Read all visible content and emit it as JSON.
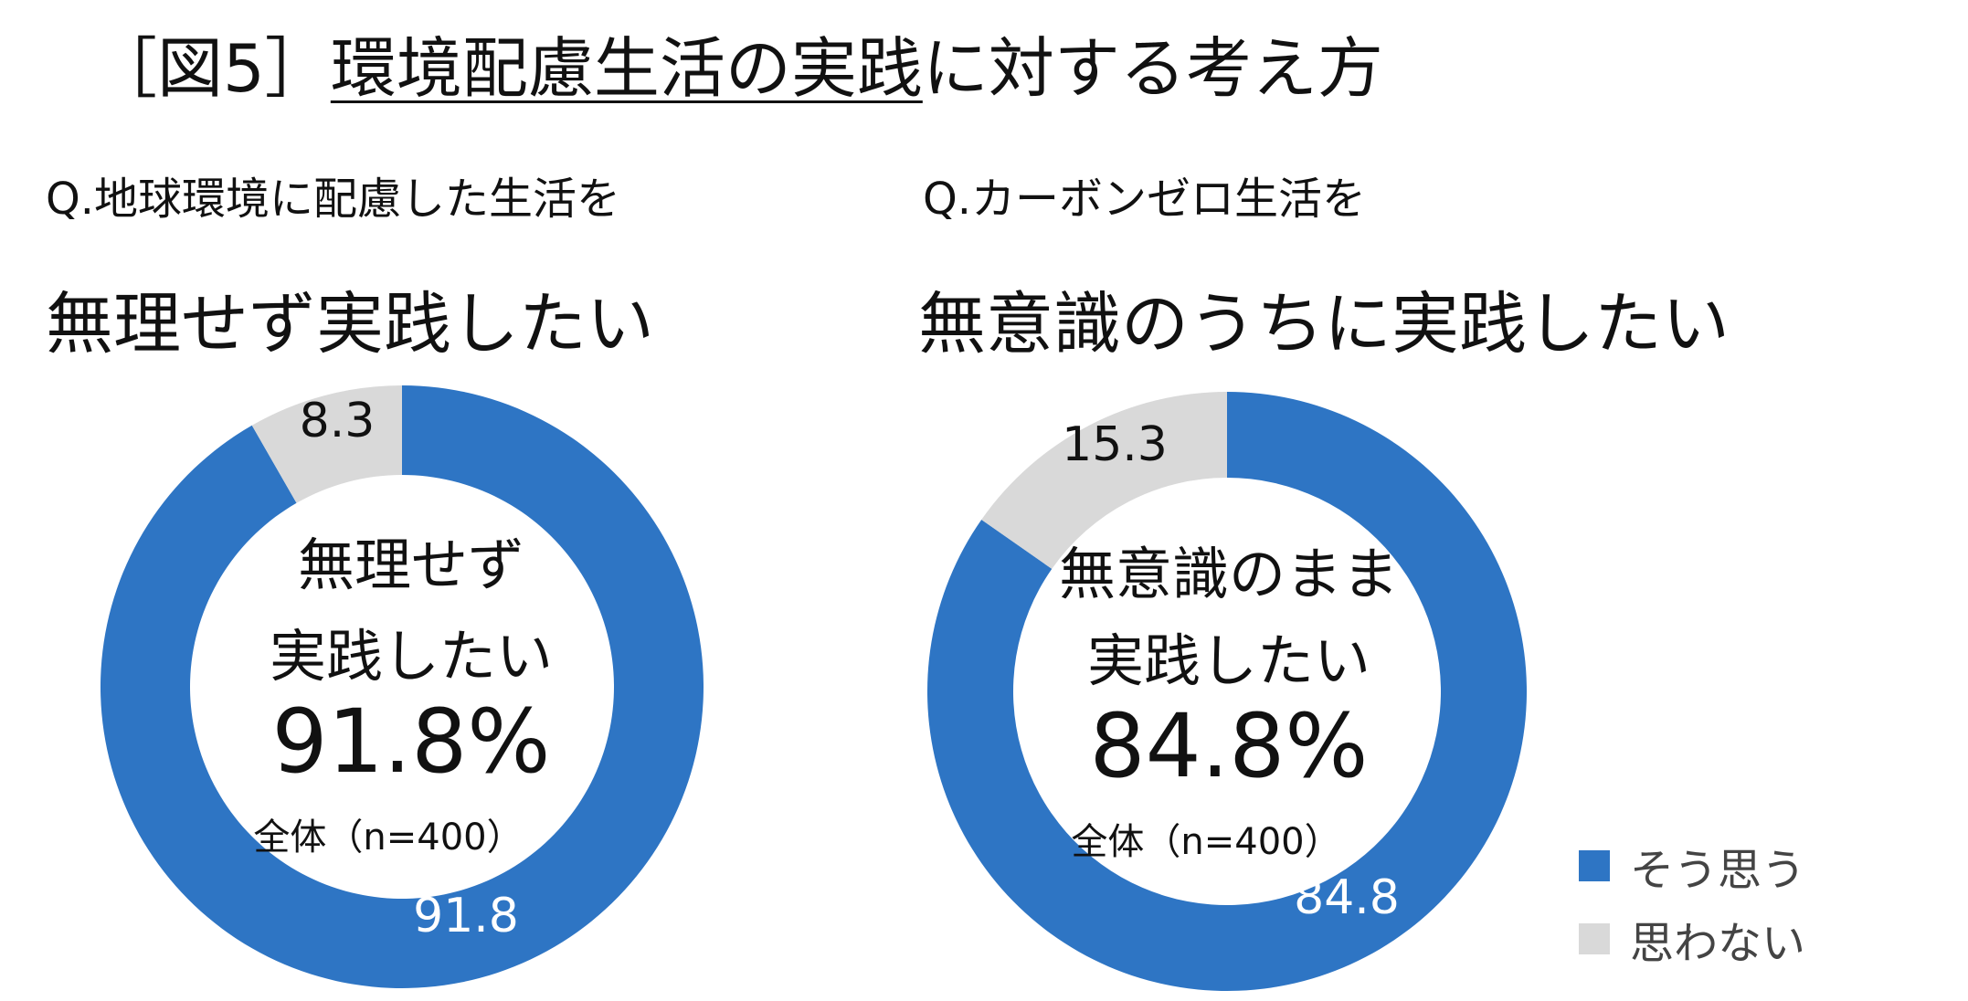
{
  "title": {
    "prefix": "［図5］",
    "underlined": "環境配慮生活の実践",
    "suffix": "に対する考え方"
  },
  "colors": {
    "agree": "#2e75c4",
    "disagree": "#d9d9d9",
    "text": "#111111",
    "on_blue": "#ffffff"
  },
  "panels": [
    {
      "question": "Q.地球環境に配慮した生活を",
      "subtitle": "無理せず実践したい",
      "center_line1": "無理せず",
      "center_line2": "実践したい",
      "center_value": "91.8%",
      "base": "全体（n=400）"
    },
    {
      "question": "Q.カーボンゼロ生活を",
      "subtitle": "無意識のうちに実践したい",
      "center_line1": "無意識のまま",
      "center_line2": "実践したい",
      "center_value": "84.8%",
      "base": "全体（n=400）"
    }
  ],
  "legend": {
    "items": [
      "そう思う",
      "思わない"
    ]
  },
  "chart_data": [
    {
      "type": "pie",
      "labels": [
        "そう思う",
        "思わない"
      ],
      "values": [
        91.8,
        8.3
      ],
      "value_labels": [
        "91.8",
        "8.3"
      ]
    },
    {
      "type": "pie",
      "labels": [
        "そう思う",
        "思わない"
      ],
      "values": [
        84.8,
        15.3
      ],
      "value_labels": [
        "84.8",
        "15.3"
      ]
    }
  ]
}
